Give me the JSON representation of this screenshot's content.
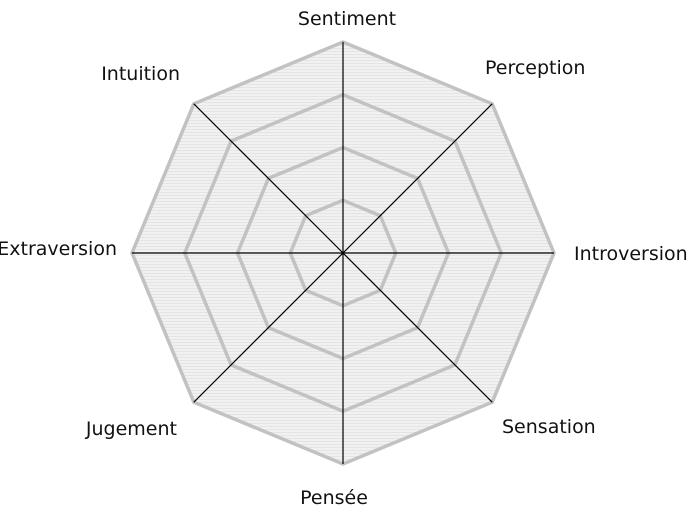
{
  "chart_data": {
    "type": "radar",
    "title": "",
    "axes": [
      "Sentiment",
      "Perception",
      "Introversion",
      "Sensation",
      "Pensée",
      "Jugement",
      "Extraversion",
      "Intuition"
    ],
    "rings": 4,
    "series": [],
    "grid": true,
    "colors": {
      "ring_stroke": "#c2c2c2",
      "fill": "#efefef",
      "spoke": "#000000",
      "label": "#111111"
    }
  }
}
